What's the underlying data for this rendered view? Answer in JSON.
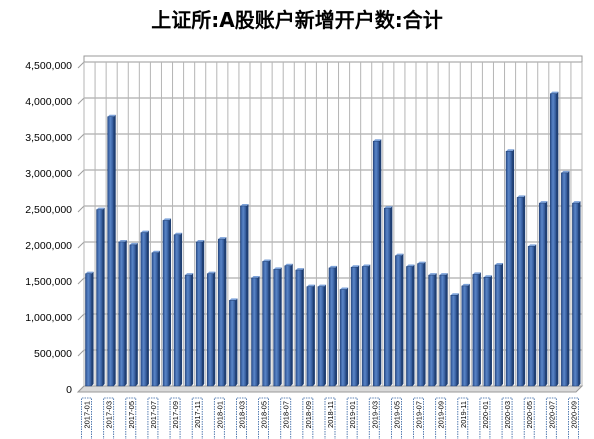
{
  "chart_data": {
    "type": "bar",
    "title": "上证所:A股账户新增开户数:合计",
    "xlabel": "",
    "ylabel": "",
    "ylim": [
      0,
      4500000
    ],
    "yticks": [
      0,
      500000,
      1000000,
      1500000,
      2000000,
      2500000,
      3000000,
      3500000,
      4000000,
      4500000
    ],
    "ytick_labels": [
      "0",
      "500,000",
      "1,000,000",
      "1,500,000",
      "2,000,000",
      "2,500,000",
      "3,000,000",
      "3,500,000",
      "4,000,000",
      "4,500,000"
    ],
    "grid": true,
    "legend": "none",
    "bar_color": "#3d66a8",
    "categories": [
      "2017-01",
      "2017-02",
      "2017-03",
      "2017-04",
      "2017-05",
      "2017-06",
      "2017-07",
      "2017-08",
      "2017-09",
      "2017-10",
      "2017-11",
      "2017-12",
      "2018-01",
      "2018-02",
      "2018-03",
      "2018-04",
      "2018-05",
      "2018-06",
      "2018-07",
      "2018-08",
      "2018-09",
      "2018-10",
      "2018-11",
      "2018-12",
      "2019-01",
      "2019-02",
      "2019-03",
      "2019-04",
      "2019-05",
      "2019-06",
      "2019-07",
      "2019-08",
      "2019-09",
      "2019-10",
      "2019-11",
      "2019-12",
      "2020-01",
      "2020-02",
      "2020-03",
      "2020-04",
      "2020-05",
      "2020-06",
      "2020-07",
      "2020-08",
      "2020-09"
    ],
    "values": [
      1560000,
      2450000,
      3740000,
      2000000,
      1960000,
      2130000,
      1850000,
      2300000,
      2100000,
      1540000,
      2000000,
      1560000,
      2040000,
      1190000,
      2500000,
      1500000,
      1730000,
      1620000,
      1670000,
      1610000,
      1380000,
      1380000,
      1640000,
      1340000,
      1650000,
      1660000,
      3400000,
      2470000,
      1810000,
      1660000,
      1700000,
      1540000,
      1540000,
      1260000,
      1390000,
      1550000,
      1510000,
      1680000,
      3260000,
      2620000,
      1940000,
      2540000,
      4060000,
      2960000,
      2540000
    ],
    "tick_labels": [
      "2017-01",
      "2017-03",
      "2017-05",
      "2017-07",
      "2017-09",
      "2017-11",
      "2018-01",
      "2018-03",
      "2018-05",
      "2018-07",
      "2018-09",
      "2018-11",
      "2019-01",
      "2019-03",
      "2019-05",
      "2019-07",
      "2019-09",
      "2019-11",
      "2020-01",
      "2020-03",
      "2020-05",
      "2020-07",
      "2020-09"
    ]
  }
}
